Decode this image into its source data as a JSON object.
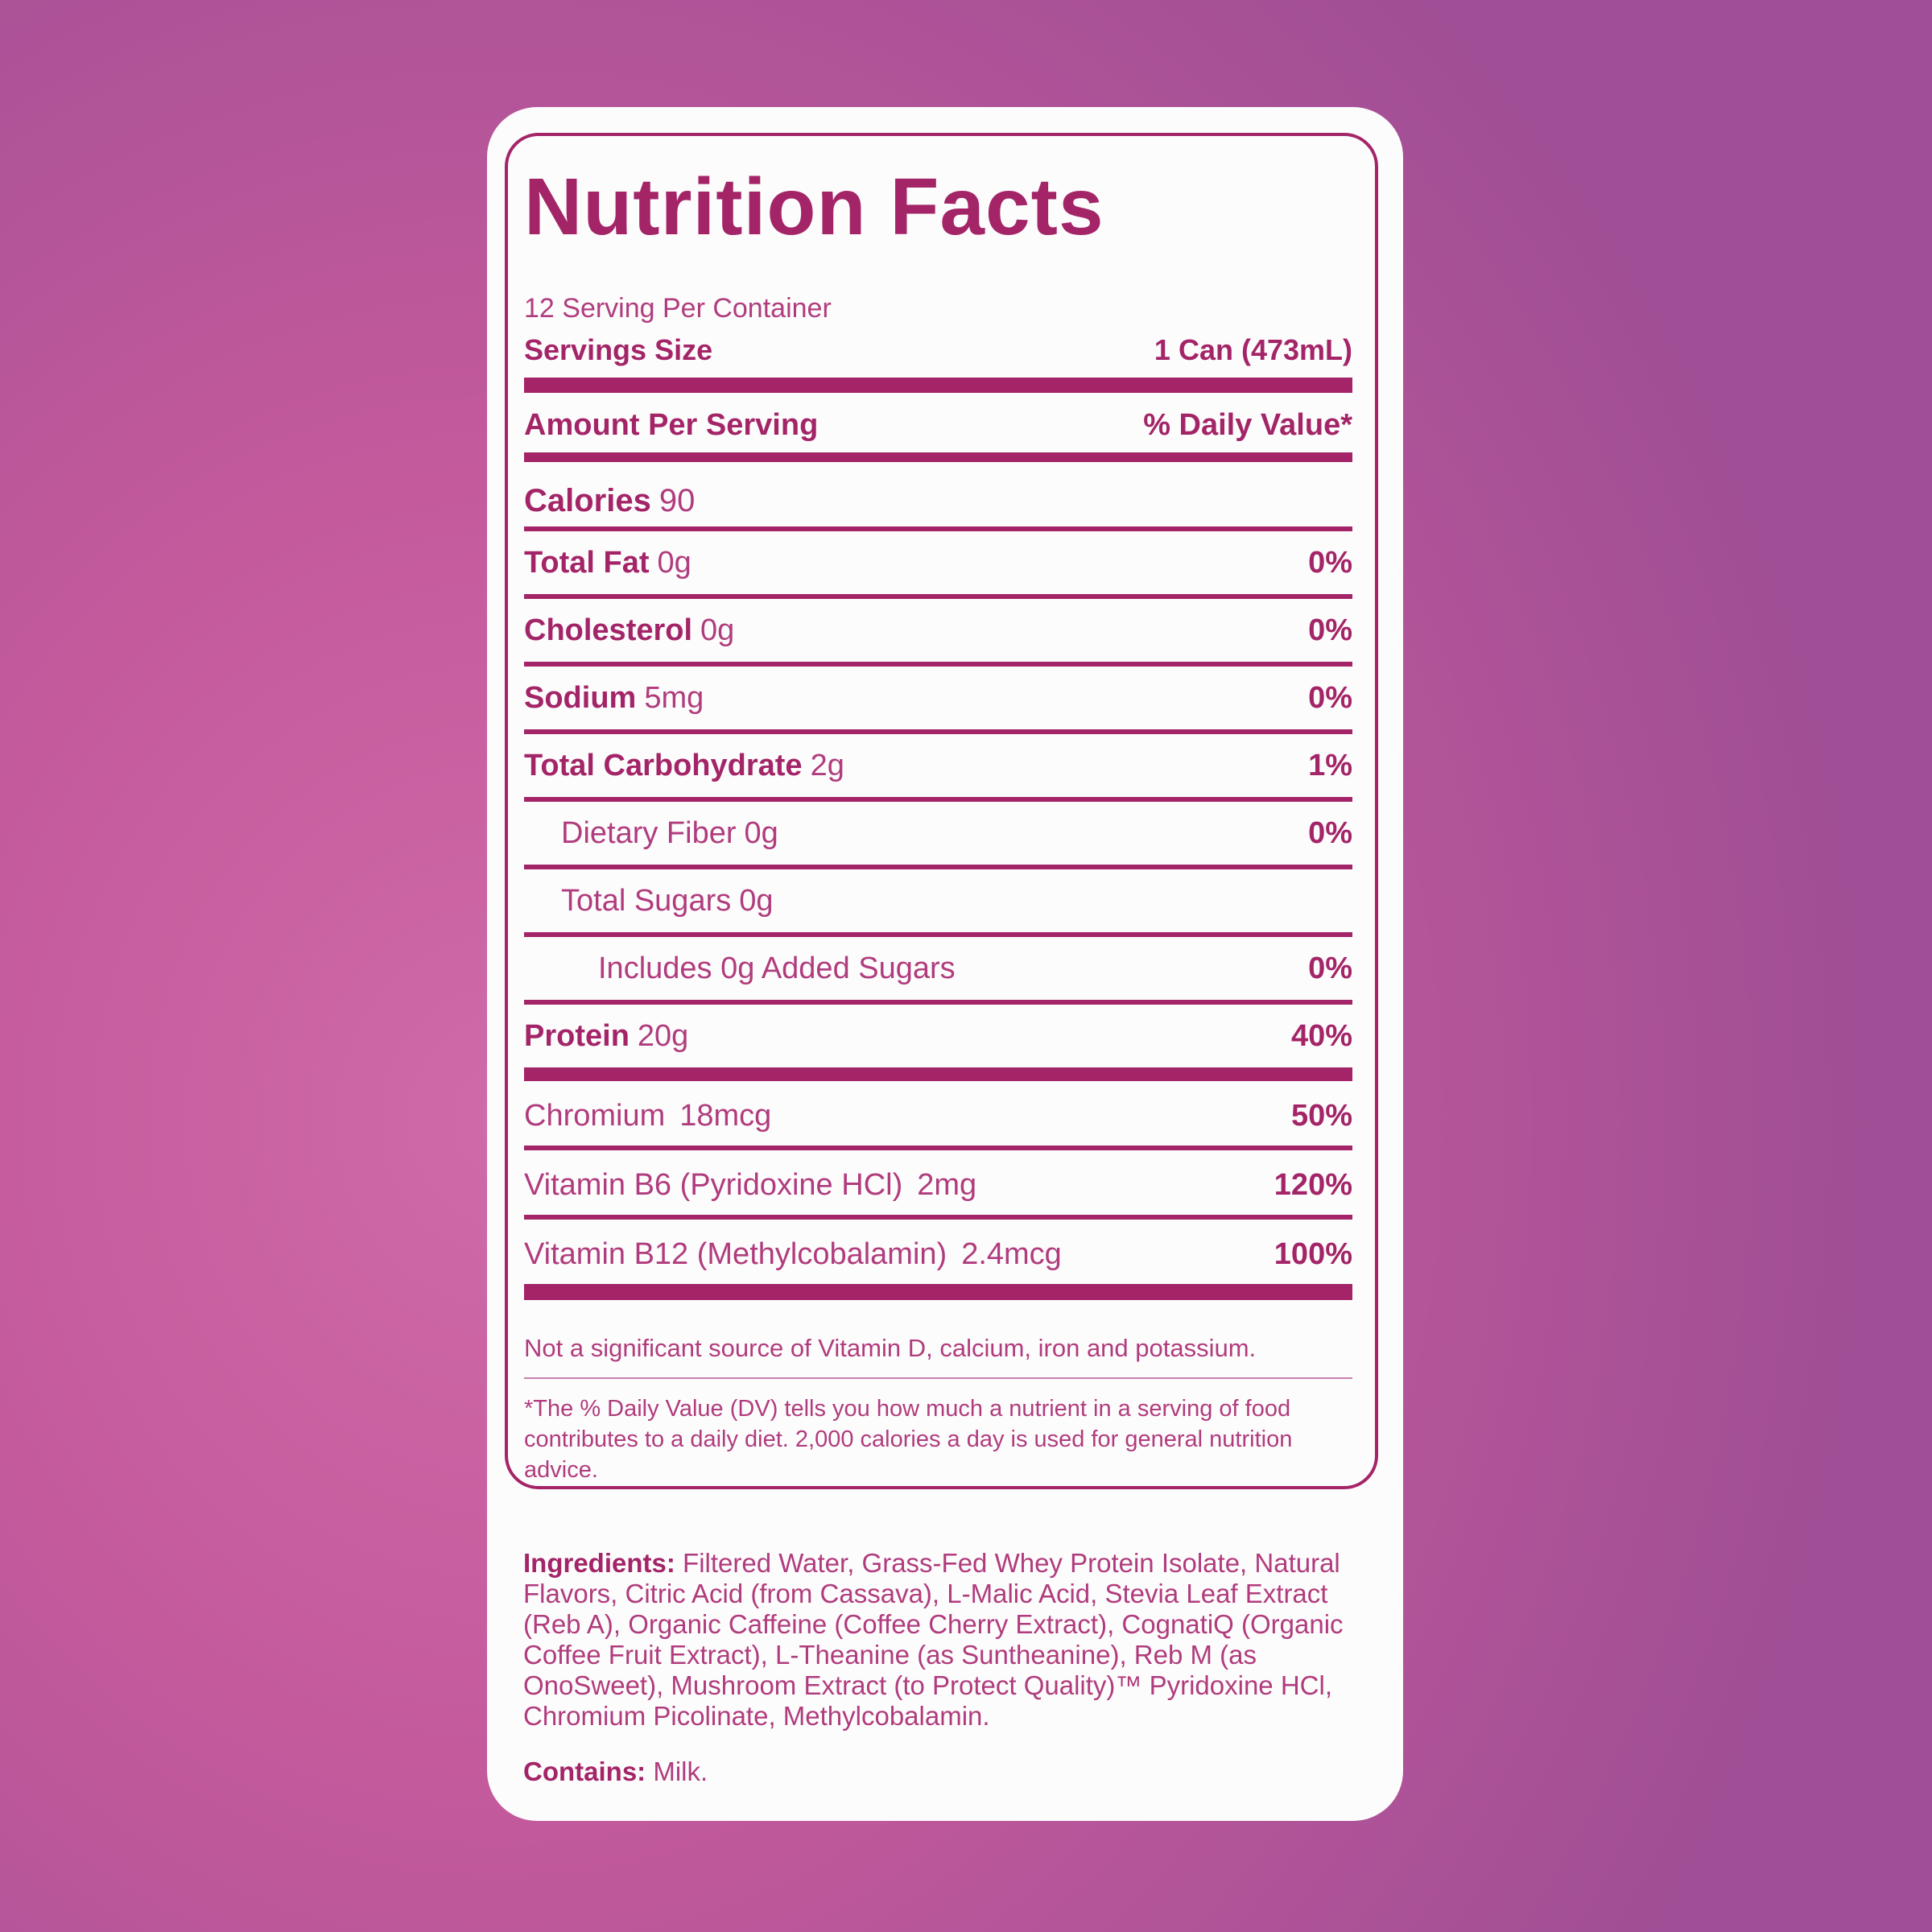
{
  "accent_color": "#A32568",
  "text_color": "#B03C7D",
  "label": {
    "title": "Nutrition Facts",
    "servings_per_container": "12 Serving Per Container",
    "serving_size": {
      "label": "Servings Size",
      "value": "1 Can (473mL)"
    },
    "header": {
      "left": "Amount Per Serving",
      "right": "% Daily Value*"
    },
    "calories": {
      "label": "Calories",
      "value": "90"
    },
    "nutrients": [
      {
        "name": "Total Fat",
        "amount": "0g",
        "dv": "0%"
      },
      {
        "name": "Cholesterol",
        "amount": "0g",
        "dv": "0%"
      },
      {
        "name": "Sodium",
        "amount": "5mg",
        "dv": "0%"
      },
      {
        "name": "Total Carbohydrate",
        "amount": "2g",
        "dv": "1%"
      },
      {
        "name": "Dietary Fiber",
        "amount": "0g",
        "dv": "0%"
      },
      {
        "name": "Total Sugars",
        "amount": "0g",
        "dv": ""
      },
      {
        "name": "Includes 0g Added Sugars",
        "amount": "",
        "dv": "0%"
      },
      {
        "name": "Protein",
        "amount": "20g",
        "dv": "40%"
      }
    ],
    "vitamins": [
      {
        "name": "Chromium",
        "amount": "18mcg",
        "dv": "50%"
      },
      {
        "name": "Vitamin B6 (Pyridoxine HCl)",
        "amount": "2mg",
        "dv": "120%"
      },
      {
        "name": "Vitamin B12 (Methylcobalamin)",
        "amount": "2.4mcg",
        "dv": "100%"
      }
    ],
    "not_significant": "Not a significant source of Vitamin D, calcium, iron and potassium.",
    "footnote": "*The % Daily Value (DV) tells you how much a nutrient in a serving of food contributes to a daily diet. 2,000 calories a day is used for general nutrition advice.",
    "ingredients": {
      "label": "Ingredients:",
      "text": "Filtered Water, Grass-Fed Whey Protein Isolate, Natural Flavors, Citric Acid (from Cassava), L-Malic Acid, Stevia Leaf Extract (Reb A), Organic Caffeine (Coffee Cherry Extract), CognatiQ (Organic Coffee Fruit Extract), L-Theanine (as Suntheanine), Reb M (as OnoSweet), Mushroom Extract (to Protect Quality)™ Pyridoxine HCl, Chromium Picolinate, Methylcobalamin."
    },
    "contains": {
      "label": "Contains:",
      "text": "Milk."
    }
  }
}
